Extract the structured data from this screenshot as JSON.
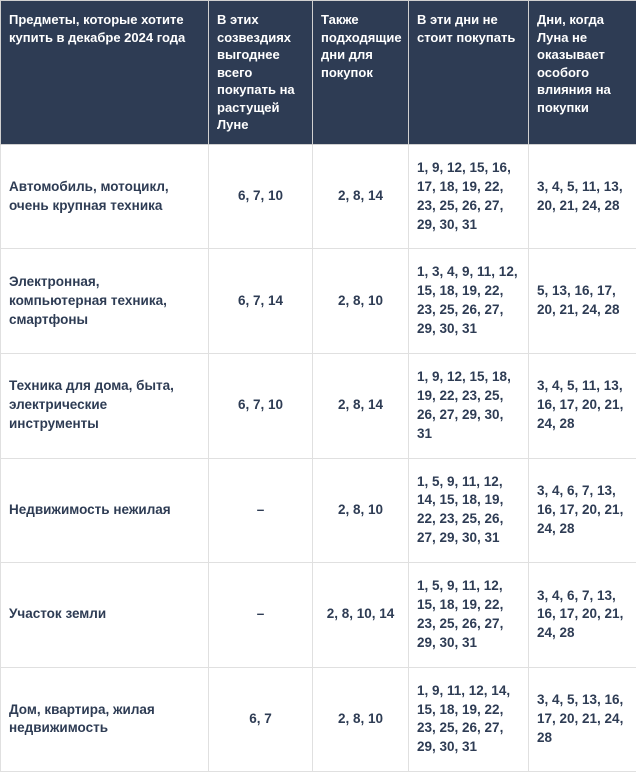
{
  "table": {
    "header_bg": "#2e3c54",
    "header_fg": "#ffffff",
    "cell_fg": "#2e3c54",
    "border_color": "#e0e0e0",
    "columns": [
      "Предметы, которые хотите купить в декабре 2024 года",
      "В этих созвездиях выгоднее всего покупать на растущей Луне",
      "Также подходящие дни для покупок",
      "В эти дни не стоит покупать",
      "Дни, когда Луна не оказывает особого влияния на покупки"
    ],
    "rows": [
      {
        "name": "Автомобиль, мотоцикл, очень крупная техника",
        "best": "6, 7, 10",
        "also": "2, 8, 14",
        "avoid": "1, 9, 12, 15, 16, 17, 18, 19, 22, 23, 25, 26, 27, 29, 30, 31",
        "neutral": "3, 4, 5, 11, 13, 20, 21, 24, 28"
      },
      {
        "name": "Электронная, компьютерная техника, смартфоны",
        "best": "6, 7, 14",
        "also": "2, 8, 10",
        "avoid": "1, 3, 4, 9, 11, 12, 15, 18, 19, 22, 23, 25, 26, 27, 29, 30, 31",
        "neutral": "5, 13, 16, 17, 20, 21, 24, 28"
      },
      {
        "name": "Техника для дома, быта, электрические инструменты",
        "best": "6, 7, 10",
        "also": "2, 8, 14",
        "avoid": "1, 9, 12, 15, 18, 19, 22, 23, 25, 26, 27, 29, 30, 31",
        "neutral": "3, 4, 5, 11, 13, 16, 17, 20, 21, 24, 28"
      },
      {
        "name": "Недвижимость нежилая",
        "best": "–",
        "also": "2, 8, 10",
        "avoid": "1, 5, 9, 11, 12, 14, 15, 18, 19, 22, 23, 25, 26, 27, 29, 30, 31",
        "neutral": "3, 4, 6, 7, 13, 16, 17, 20, 21, 24, 28"
      },
      {
        "name": "Участок земли",
        "best": "–",
        "also": "2, 8, 10, 14",
        "avoid": "1, 5, 9, 11, 12, 15, 18, 19, 22, 23, 25, 26, 27, 29, 30, 31",
        "neutral": "3, 4, 6, 7, 13, 16, 17, 20, 21, 24, 28"
      },
      {
        "name": "Дом, квартира, жилая недвижимость",
        "best": "6, 7",
        "also": "2, 8, 10",
        "avoid": "1, 9, 11, 12, 14, 15, 18, 19, 22, 23, 25, 26, 27, 29, 30, 31",
        "neutral": "3, 4, 5, 13, 16, 17, 20, 21, 24, 28"
      }
    ]
  }
}
